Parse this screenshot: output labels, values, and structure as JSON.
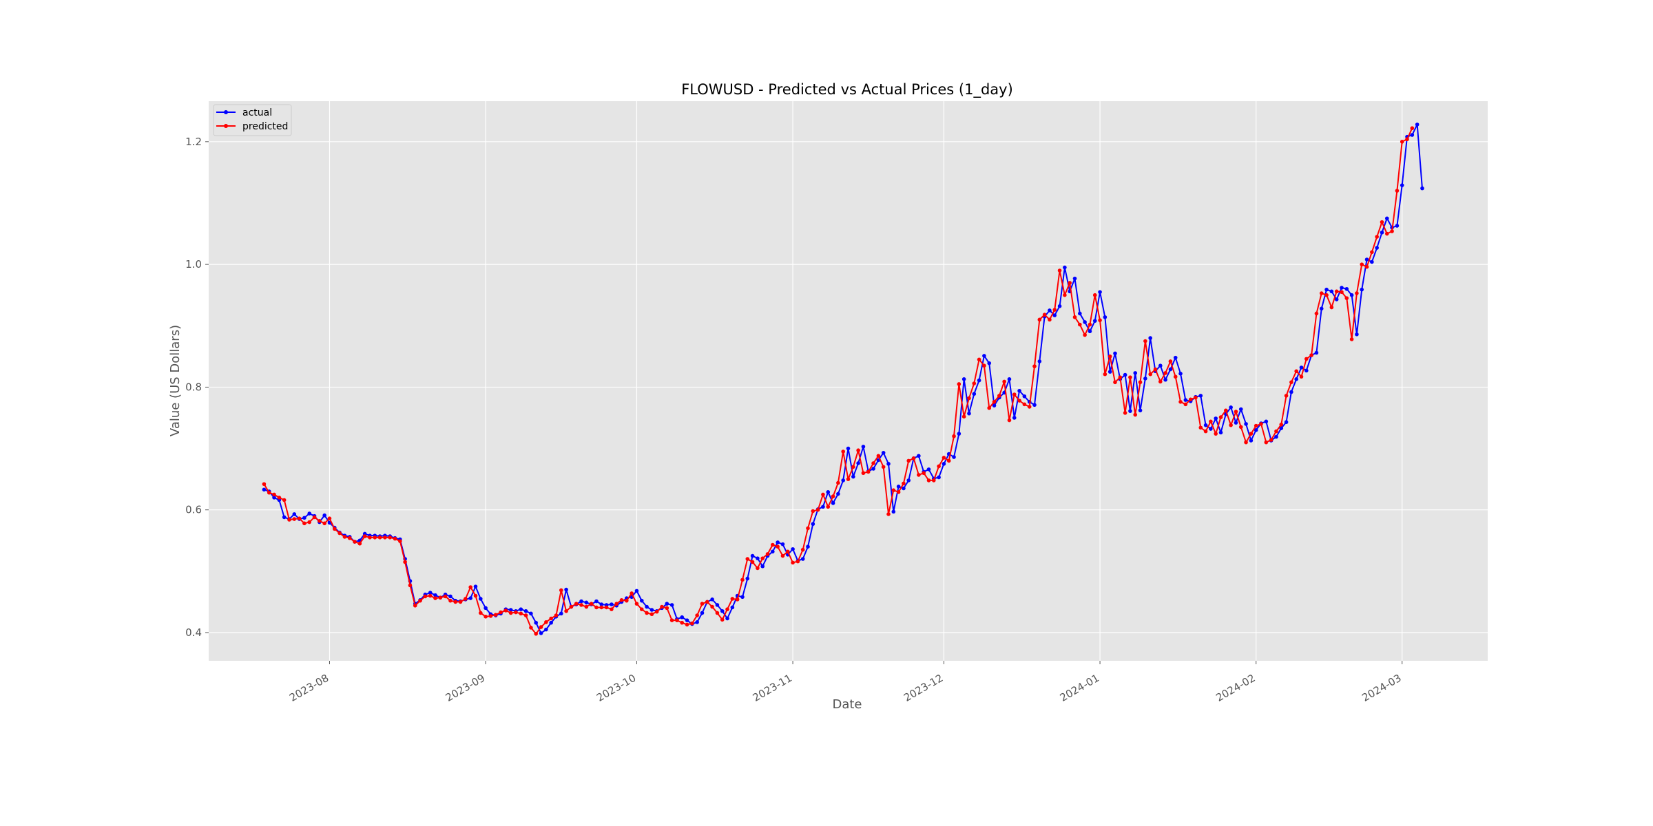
{
  "chart_data": {
    "type": "line",
    "title": "FLOWUSD - Predicted vs Actual Prices (1_day)",
    "xlabel": "Date",
    "ylabel": "Value (US Dollars)",
    "x_ticks": [
      "2023-08",
      "2023-09",
      "2023-10",
      "2023-11",
      "2023-12",
      "2024-01",
      "2024-02",
      "2024-03"
    ],
    "y_ticks": [
      "0.4",
      "0.6",
      "0.8",
      "1.0",
      "1.2"
    ],
    "xlim": [
      "2023-07-08",
      "2024-03-18"
    ],
    "ylim": [
      0.354,
      1.266
    ],
    "grid": true,
    "legend_position": "top-left",
    "background_color": "#e5e5e5",
    "grid_color": "#ffffff",
    "x_start": "2023-07-19",
    "series": [
      {
        "name": "actual",
        "color": "#0000ff",
        "values": [
          0.633,
          0.63,
          0.62,
          0.616,
          0.588,
          0.585,
          0.593,
          0.585,
          0.587,
          0.594,
          0.59,
          0.58,
          0.591,
          0.579,
          0.571,
          0.563,
          0.558,
          0.556,
          0.548,
          0.55,
          0.561,
          0.558,
          0.558,
          0.557,
          0.558,
          0.557,
          0.554,
          0.552,
          0.52,
          0.484,
          0.447,
          0.453,
          0.462,
          0.465,
          0.461,
          0.457,
          0.462,
          0.459,
          0.452,
          0.451,
          0.454,
          0.456,
          0.475,
          0.455,
          0.44,
          0.43,
          0.428,
          0.431,
          0.438,
          0.437,
          0.435,
          0.438,
          0.435,
          0.431,
          0.416,
          0.399,
          0.405,
          0.416,
          0.426,
          0.431,
          0.47,
          0.442,
          0.446,
          0.451,
          0.449,
          0.446,
          0.451,
          0.446,
          0.445,
          0.446,
          0.444,
          0.45,
          0.456,
          0.458,
          0.468,
          0.452,
          0.442,
          0.437,
          0.435,
          0.44,
          0.447,
          0.445,
          0.422,
          0.425,
          0.42,
          0.414,
          0.417,
          0.432,
          0.45,
          0.454,
          0.445,
          0.435,
          0.423,
          0.441,
          0.46,
          0.458,
          0.488,
          0.525,
          0.521,
          0.508,
          0.525,
          0.532,
          0.547,
          0.544,
          0.527,
          0.536,
          0.517,
          0.52,
          0.54,
          0.577,
          0.601,
          0.605,
          0.629,
          0.611,
          0.626,
          0.648,
          0.7,
          0.654,
          0.676,
          0.703,
          0.663,
          0.667,
          0.681,
          0.693,
          0.675,
          0.597,
          0.638,
          0.635,
          0.648,
          0.684,
          0.688,
          0.662,
          0.666,
          0.651,
          0.653,
          0.675,
          0.691,
          0.686,
          0.724,
          0.813,
          0.757,
          0.789,
          0.811,
          0.851,
          0.839,
          0.77,
          0.783,
          0.791,
          0.813,
          0.75,
          0.794,
          0.785,
          0.776,
          0.771,
          0.842,
          0.915,
          0.925,
          0.917,
          0.932,
          0.995,
          0.956,
          0.977,
          0.92,
          0.906,
          0.891,
          0.908,
          0.955,
          0.914,
          0.825,
          0.855,
          0.813,
          0.82,
          0.761,
          0.823,
          0.762,
          0.814,
          0.88,
          0.826,
          0.835,
          0.812,
          0.829,
          0.848,
          0.822,
          0.779,
          0.777,
          0.784,
          0.786,
          0.738,
          0.732,
          0.749,
          0.726,
          0.756,
          0.767,
          0.742,
          0.764,
          0.74,
          0.713,
          0.73,
          0.741,
          0.744,
          0.713,
          0.719,
          0.733,
          0.743,
          0.792,
          0.813,
          0.832,
          0.827,
          0.852,
          0.856,
          0.928,
          0.959,
          0.956,
          0.943,
          0.962,
          0.96,
          0.95,
          0.886,
          0.959,
          1.008,
          1.004,
          1.027,
          1.052,
          1.075,
          1.06,
          1.063,
          1.129,
          1.208,
          1.211,
          1.228,
          1.124
        ]
      },
      {
        "name": "predicted",
        "color": "#ff0000",
        "values": [
          0.642,
          0.628,
          0.625,
          0.62,
          0.616,
          0.584,
          0.585,
          0.586,
          0.578,
          0.58,
          0.588,
          0.582,
          0.578,
          0.586,
          0.569,
          0.562,
          0.556,
          0.554,
          0.548,
          0.545,
          0.557,
          0.555,
          0.555,
          0.555,
          0.555,
          0.555,
          0.553,
          0.549,
          0.515,
          0.477,
          0.444,
          0.452,
          0.459,
          0.46,
          0.456,
          0.457,
          0.459,
          0.452,
          0.45,
          0.45,
          0.455,
          0.474,
          0.46,
          0.432,
          0.426,
          0.427,
          0.429,
          0.433,
          0.436,
          0.432,
          0.433,
          0.431,
          0.428,
          0.408,
          0.398,
          0.409,
          0.417,
          0.423,
          0.428,
          0.469,
          0.435,
          0.442,
          0.447,
          0.445,
          0.442,
          0.447,
          0.441,
          0.441,
          0.441,
          0.438,
          0.447,
          0.453,
          0.452,
          0.464,
          0.447,
          0.438,
          0.432,
          0.43,
          0.434,
          0.442,
          0.44,
          0.42,
          0.42,
          0.416,
          0.413,
          0.415,
          0.428,
          0.447,
          0.45,
          0.442,
          0.432,
          0.421,
          0.438,
          0.455,
          0.454,
          0.486,
          0.52,
          0.515,
          0.505,
          0.521,
          0.528,
          0.543,
          0.54,
          0.525,
          0.532,
          0.514,
          0.516,
          0.535,
          0.57,
          0.598,
          0.6,
          0.625,
          0.605,
          0.622,
          0.644,
          0.695,
          0.65,
          0.67,
          0.697,
          0.66,
          0.662,
          0.676,
          0.688,
          0.67,
          0.593,
          0.632,
          0.629,
          0.643,
          0.68,
          0.684,
          0.657,
          0.66,
          0.648,
          0.648,
          0.671,
          0.685,
          0.68,
          0.72,
          0.805,
          0.752,
          0.782,
          0.806,
          0.845,
          0.835,
          0.766,
          0.776,
          0.786,
          0.809,
          0.746,
          0.788,
          0.778,
          0.772,
          0.768,
          0.834,
          0.91,
          0.918,
          0.91,
          0.926,
          0.99,
          0.95,
          0.97,
          0.914,
          0.902,
          0.885,
          0.902,
          0.95,
          0.909,
          0.821,
          0.85,
          0.808,
          0.816,
          0.758,
          0.816,
          0.755,
          0.808,
          0.875,
          0.821,
          0.829,
          0.809,
          0.823,
          0.842,
          0.817,
          0.776,
          0.772,
          0.78,
          0.783,
          0.734,
          0.728,
          0.744,
          0.724,
          0.751,
          0.762,
          0.738,
          0.76,
          0.735,
          0.71,
          0.724,
          0.737,
          0.74,
          0.71,
          0.714,
          0.728,
          0.739,
          0.786,
          0.808,
          0.826,
          0.817,
          0.846,
          0.852,
          0.92,
          0.953,
          0.95,
          0.93,
          0.956,
          0.955,
          0.945,
          0.878,
          0.953,
          1.0,
          0.996,
          1.02,
          1.045,
          1.069,
          1.05,
          1.054,
          1.12,
          1.2,
          1.204,
          1.222
        ]
      }
    ]
  }
}
